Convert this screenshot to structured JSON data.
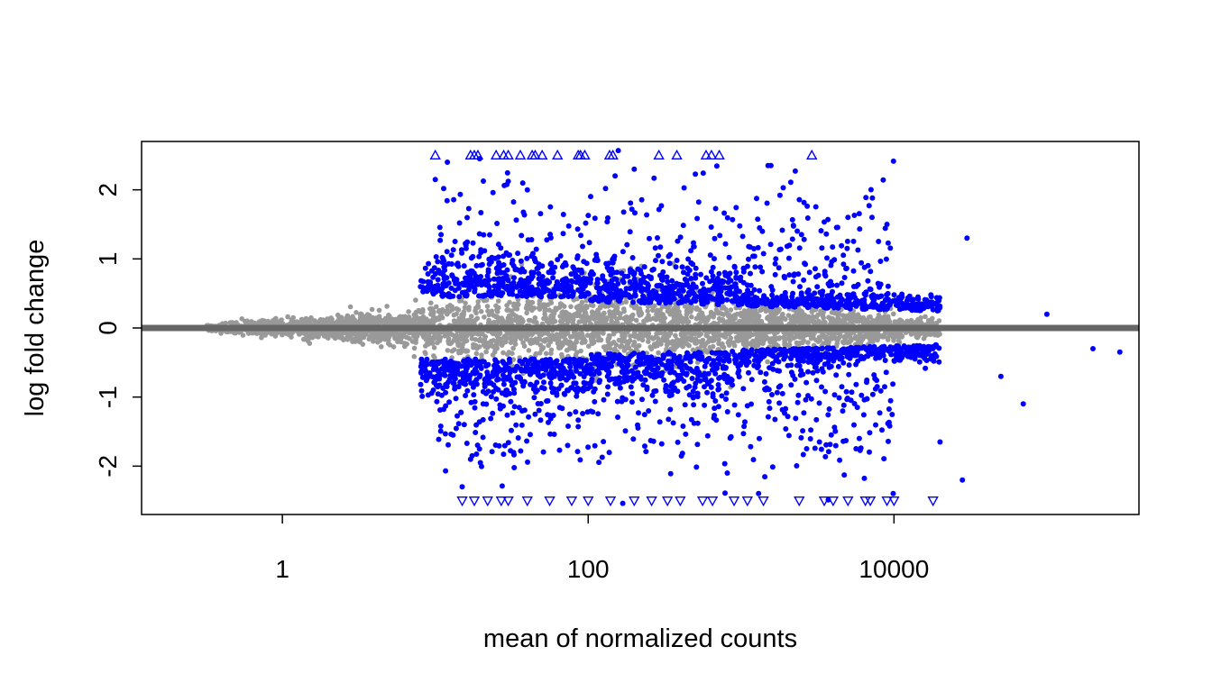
{
  "chart_data": {
    "type": "scatter",
    "title": "",
    "xlabel": "mean of normalized counts",
    "ylabel": "log fold change",
    "x_scale": "log10",
    "xlim": [
      0.12,
      400000
    ],
    "ylim": [
      -2.7,
      2.7
    ],
    "x_ticks": [
      1,
      100,
      10000
    ],
    "x_tick_labels": [
      "1",
      "100",
      "10000"
    ],
    "y_ticks": [
      -2,
      -1,
      0,
      1,
      2
    ],
    "y_tick_labels": [
      "-2",
      "-1",
      "0",
      "1",
      "2"
    ],
    "grid": false,
    "legend": "none",
    "reference_line": {
      "y": 0,
      "color": "#666666"
    },
    "colors": {
      "significant": "#0000ff",
      "not_significant": "#999999",
      "frame": "#000000"
    },
    "series": [
      {
        "points_up_clipped": [
          [
            10,
            2.5
          ],
          [
            17,
            2.5
          ],
          [
            18,
            2.5
          ],
          [
            19,
            2.5
          ],
          [
            25,
            2.5
          ],
          [
            28,
            2.5
          ],
          [
            30,
            2.5
          ],
          [
            36,
            2.5
          ],
          [
            43,
            2.5
          ],
          [
            45,
            2.5
          ],
          [
            50,
            2.5
          ],
          [
            63,
            2.5
          ],
          [
            86,
            2.5
          ],
          [
            89,
            2.5
          ],
          [
            95,
            2.5
          ],
          [
            138,
            2.5
          ],
          [
            145,
            2.5
          ],
          [
            290,
            2.5
          ],
          [
            380,
            2.5
          ],
          [
            590,
            2.5
          ],
          [
            640,
            2.5
          ],
          [
            720,
            2.5
          ],
          [
            2900,
            2.5
          ]
        ],
        "points_down_clipped": [
          [
            15,
            -2.5
          ],
          [
            18,
            -2.5
          ],
          [
            22,
            -2.5
          ],
          [
            27,
            -2.5
          ],
          [
            30,
            -2.5
          ],
          [
            40,
            -2.5
          ],
          [
            56,
            -2.5
          ],
          [
            78,
            -2.5
          ],
          [
            100,
            -2.5
          ],
          [
            140,
            -2.5
          ],
          [
            200,
            -2.5
          ],
          [
            260,
            -2.5
          ],
          [
            330,
            -2.5
          ],
          [
            400,
            -2.5
          ],
          [
            560,
            -2.5
          ],
          [
            650,
            -2.5
          ],
          [
            900,
            -2.5
          ],
          [
            1100,
            -2.5
          ],
          [
            1400,
            -2.5
          ],
          [
            2400,
            -2.5
          ],
          [
            3500,
            -2.5
          ],
          [
            4000,
            -2.5
          ],
          [
            5000,
            -2.5
          ],
          [
            6500,
            -2.5
          ],
          [
            7000,
            -2.5
          ],
          [
            9000,
            -2.5
          ],
          [
            10000,
            -2.5
          ],
          [
            18000,
            -2.5
          ]
        ],
        "sample_points": [
          [
            10,
            2.15
          ],
          [
            12,
            2.4
          ],
          [
            40,
            2.0
          ],
          [
            150,
            2.2
          ],
          [
            200,
            2.3
          ],
          [
            1500,
            2.35
          ],
          [
            5000,
            1.6
          ],
          [
            9000,
            1.5
          ],
          [
            30000,
            1.3
          ],
          [
            100000,
            0.2
          ],
          [
            200000,
            -0.3
          ],
          [
            300000,
            -0.35
          ],
          [
            50000,
            -0.7
          ],
          [
            70000,
            -1.1
          ],
          [
            20000,
            -1.65
          ],
          [
            28000,
            -2.2
          ],
          [
            15,
            -2.3
          ],
          [
            17,
            -1.9
          ]
        ]
      }
    ]
  }
}
